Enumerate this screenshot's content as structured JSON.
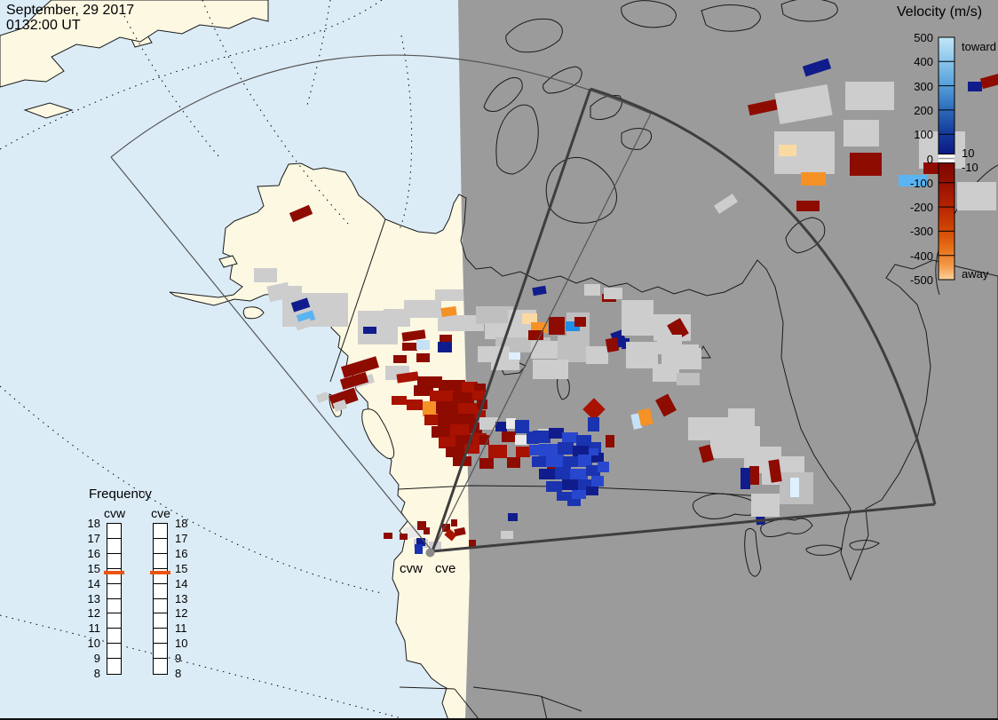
{
  "header": {
    "date": "September, 29 2017",
    "time": "0132:00 UT"
  },
  "colorbar": {
    "title": "Velocity (m/s)",
    "toward_label": "toward",
    "away_label": "away",
    "zero_upper_label": "10",
    "zero_lower_label": "-10",
    "ticks": [
      "500",
      "400",
      "300",
      "200",
      "100",
      "0",
      "-100",
      "-200",
      "-300",
      "-400",
      "-500"
    ],
    "toward_gradient": [
      "#c3e6f8",
      "#8cc6ec",
      "#58a2dc",
      "#306fbd",
      "#173f9f",
      "#0a1a85"
    ],
    "away_gradient": [
      "#7c0600",
      "#961000",
      "#b32000",
      "#cd4303",
      "#e66d15",
      "#f49a48",
      "#fbd19a"
    ]
  },
  "frequency": {
    "title": "Frequency",
    "bars": [
      {
        "label": "cvw"
      },
      {
        "label": "cve"
      }
    ],
    "ticks": [
      "18",
      "17",
      "16",
      "15",
      "14",
      "13",
      "12",
      "11",
      "10",
      "9",
      "8"
    ],
    "marker_color": "#ea5310",
    "marker_tick_index": 3
  },
  "radar_sites": {
    "west_label": "cvw",
    "east_label": "cve"
  },
  "map_colors": {
    "day_ocean": "#dcecf7",
    "day_land": "#fcf8e2",
    "night": "#9b9b9b",
    "coast": "#1a1a1a",
    "fan_thin": "#555555",
    "fan_thick": "#3e3e3e"
  },
  "cells": {
    "palette": {
      "gs": "#cdcdcd",
      "g2": "#bfbfbf",
      "wt": "#e9e9e9",
      "r1": "#8e0b00",
      "r2": "#a81200",
      "or": "#f59125",
      "pe": "#fbd9a2",
      "n1": "#101c8c",
      "b1": "#1a33b0",
      "b2": "#2847cf",
      "b3": "#1f8fe8",
      "sb": "#5ab4f2",
      "pb": "#c4e1f8",
      "vb": "#def0fd"
    },
    "rects": [
      [
        "gs",
        286,
        302,
        26,
        16
      ],
      [
        "gs",
        302,
        320,
        24,
        18,
        -12
      ],
      [
        "gs",
        322,
        322,
        18,
        11
      ],
      [
        "gs",
        318,
        330,
        74,
        38
      ],
      [
        "n1",
        329,
        338,
        19,
        11,
        -18
      ],
      [
        "sb",
        335,
        352,
        19,
        11,
        -18
      ],
      [
        "gs",
        333,
        361,
        18,
        9,
        -18
      ],
      [
        "r1",
        327,
        235,
        24,
        11,
        -23
      ],
      [
        "gs",
        403,
        350,
        45,
        38
      ],
      [
        "n1",
        409,
        368,
        15,
        8
      ],
      [
        "gs",
        432,
        348,
        30,
        20
      ],
      [
        "gs",
        455,
        338,
        42,
        20
      ],
      [
        "gs",
        490,
        326,
        32,
        13
      ],
      [
        "gs",
        493,
        355,
        52,
        18
      ],
      [
        "or",
        497,
        346,
        17,
        10,
        -8
      ],
      [
        "r1",
        453,
        373,
        26,
        10,
        -8
      ],
      [
        "r1",
        453,
        386,
        17,
        9
      ],
      [
        "pb",
        469,
        383,
        15,
        11
      ],
      [
        "r1",
        443,
        400,
        15,
        9
      ],
      [
        "r1",
        469,
        398,
        15,
        10
      ],
      [
        "r1",
        495,
        377,
        14,
        11
      ],
      [
        "n1",
        493,
        385,
        16,
        12
      ],
      [
        "gs",
        434,
        412,
        27,
        16
      ],
      [
        "r1",
        385,
        407,
        41,
        13,
        -17
      ],
      [
        "gs",
        399,
        424,
        22,
        10,
        -17
      ],
      [
        "r1",
        384,
        423,
        30,
        12,
        -17
      ],
      [
        "r1",
        372,
        441,
        30,
        15,
        -19
      ],
      [
        "gs",
        376,
        452,
        14,
        10,
        -19
      ],
      [
        "gs",
        357,
        443,
        13,
        9,
        -19
      ],
      [
        "g2",
        536,
        345,
        42,
        20
      ],
      [
        "gs",
        572,
        349,
        32,
        15
      ],
      [
        "gs",
        546,
        364,
        52,
        18
      ],
      [
        "g2",
        558,
        380,
        62,
        17
      ],
      [
        "gs",
        538,
        390,
        36,
        18
      ],
      [
        "gs",
        598,
        384,
        42,
        20
      ],
      [
        "g2",
        628,
        378,
        32,
        30
      ],
      [
        "gs",
        553,
        404,
        32,
        13
      ],
      [
        "g2",
        638,
        352,
        26,
        40
      ],
      [
        "gs",
        600,
        405,
        40,
        22
      ],
      [
        "gs",
        660,
        390,
        25,
        20
      ],
      [
        "pe",
        588,
        353,
        17,
        12
      ],
      [
        "or",
        598,
        363,
        19,
        12
      ],
      [
        "r1",
        618,
        357,
        18,
        20
      ],
      [
        "b3",
        637,
        362,
        16,
        11
      ],
      [
        "r1",
        647,
        357,
        13,
        11
      ],
      [
        "r1",
        595,
        372,
        17,
        11
      ],
      [
        "vb",
        573,
        397,
        13,
        8
      ],
      [
        "n1",
        690,
        373,
        14,
        18,
        -20
      ],
      [
        "r1",
        683,
        381,
        13,
        15,
        -10
      ],
      [
        "n1",
        700,
        381,
        9,
        12
      ],
      [
        "n1",
        600,
        323,
        15,
        9,
        -10
      ],
      [
        "r1",
        678,
        331,
        16,
        9
      ],
      [
        "gs",
        658,
        320,
        18,
        13
      ],
      [
        "gs",
        680,
        324,
        21,
        13
      ],
      [
        "gs",
        700,
        338,
        36,
        40
      ],
      [
        "gs",
        736,
        354,
        42,
        30
      ],
      [
        "gs",
        705,
        385,
        36,
        30
      ],
      [
        "gs",
        745,
        388,
        42,
        26
      ],
      [
        "r1",
        755,
        361,
        17,
        20,
        -30
      ],
      [
        "gs",
        805,
        224,
        25,
        11,
        -33
      ],
      [
        "n1",
        905,
        70,
        30,
        12,
        -18
      ],
      [
        "r1",
        843,
        115,
        32,
        12,
        -12
      ],
      [
        "gs",
        875,
        100,
        60,
        35,
        -10
      ],
      [
        "gs",
        952,
        92,
        55,
        32
      ],
      [
        "gs",
        872,
        148,
        68,
        48
      ],
      [
        "gs",
        950,
        135,
        40,
        30
      ],
      [
        "gs",
        1035,
        148,
        52,
        42
      ],
      [
        "gs",
        1078,
        205,
        44,
        32
      ],
      [
        "pe",
        877,
        163,
        20,
        13
      ],
      [
        "or",
        902,
        194,
        28,
        15
      ],
      [
        "r1",
        957,
        172,
        36,
        26
      ],
      [
        "sb",
        1012,
        197,
        32,
        13
      ],
      [
        "r1",
        1040,
        183,
        26,
        13
      ],
      [
        "r1",
        897,
        226,
        26,
        12
      ],
      [
        "n1",
        1090,
        92,
        16,
        11
      ],
      [
        "r1",
        1105,
        85,
        26,
        12,
        -15
      ],
      [
        "gs",
        740,
        377,
        28,
        22
      ],
      [
        "gs",
        758,
        392,
        32,
        24
      ],
      [
        "gs",
        735,
        410,
        30,
        20
      ],
      [
        "g2",
        762,
        420,
        26,
        14
      ],
      [
        "r2",
        447,
        420,
        24,
        10,
        -8
      ],
      [
        "r1",
        470,
        424,
        28,
        13
      ],
      [
        "r1",
        494,
        428,
        30,
        14
      ],
      [
        "r2",
        520,
        430,
        18,
        12
      ],
      [
        "r1",
        534,
        432,
        13,
        10
      ],
      [
        "r1",
        466,
        434,
        22,
        12
      ],
      [
        "r2",
        484,
        440,
        28,
        14
      ],
      [
        "r1",
        510,
        442,
        24,
        13
      ],
      [
        "r2",
        532,
        440,
        14,
        11
      ],
      [
        "r2",
        458,
        450,
        18,
        12
      ],
      [
        "or",
        476,
        452,
        17,
        17
      ],
      [
        "r1",
        491,
        452,
        27,
        14
      ],
      [
        "r2",
        516,
        454,
        24,
        13
      ],
      [
        "r1",
        537,
        450,
        12,
        11
      ],
      [
        "r2",
        478,
        467,
        16,
        12
      ],
      [
        "r1",
        493,
        466,
        25,
        14
      ],
      [
        "r1",
        516,
        466,
        21,
        13
      ],
      [
        "r2",
        535,
        462,
        12,
        10
      ],
      [
        "r1",
        486,
        480,
        23,
        13
      ],
      [
        "r2",
        507,
        478,
        23,
        14
      ],
      [
        "r1",
        528,
        476,
        15,
        12
      ],
      [
        "r2",
        494,
        492,
        21,
        13
      ],
      [
        "r1",
        513,
        490,
        21,
        13
      ],
      [
        "r2",
        532,
        488,
        16,
        12
      ],
      [
        "r1",
        502,
        503,
        23,
        12
      ],
      [
        "r2",
        523,
        500,
        17,
        11
      ],
      [
        "r1",
        510,
        514,
        21,
        11
      ],
      [
        "r2",
        441,
        446,
        17,
        10
      ],
      [
        "gs",
        540,
        470,
        21,
        14
      ],
      [
        "n1",
        558,
        475,
        13,
        11
      ],
      [
        "wt",
        570,
        471,
        11,
        12
      ],
      [
        "b1",
        580,
        473,
        16,
        15
      ],
      [
        "r1",
        565,
        486,
        16,
        12
      ],
      [
        "wt",
        580,
        490,
        14,
        11
      ],
      [
        "b1",
        593,
        486,
        14,
        14
      ],
      [
        "gs",
        606,
        483,
        18,
        11
      ],
      [
        "r1",
        540,
        490,
        11,
        11
      ],
      [
        "r2",
        550,
        501,
        21,
        15
      ],
      [
        "r1",
        540,
        516,
        16,
        12
      ],
      [
        "r2",
        581,
        503,
        16,
        12
      ],
      [
        "b2",
        596,
        501,
        16,
        12
      ],
      [
        "r1",
        571,
        515,
        15,
        12
      ],
      [
        "b1",
        611,
        511,
        15,
        12
      ],
      [
        "r1",
        616,
        521,
        15,
        12
      ],
      [
        "b1",
        600,
        485,
        20,
        14
      ],
      [
        "n1",
        618,
        482,
        17,
        12
      ],
      [
        "b2",
        633,
        487,
        18,
        12
      ],
      [
        "b1",
        649,
        490,
        17,
        14
      ],
      [
        "b2",
        607,
        500,
        22,
        14
      ],
      [
        "b1",
        628,
        498,
        18,
        14
      ],
      [
        "n1",
        645,
        502,
        20,
        12
      ],
      [
        "b1",
        663,
        498,
        14,
        12
      ],
      [
        "b1",
        599,
        514,
        18,
        12
      ],
      [
        "b2",
        615,
        512,
        20,
        14
      ],
      [
        "b1",
        634,
        514,
        18,
        12
      ],
      [
        "b2",
        651,
        512,
        16,
        14
      ],
      [
        "n1",
        666,
        510,
        14,
        11
      ],
      [
        "n1",
        607,
        528,
        20,
        12
      ],
      [
        "b1",
        625,
        526,
        18,
        14
      ],
      [
        "b2",
        642,
        528,
        20,
        12
      ],
      [
        "b1",
        660,
        524,
        16,
        12
      ],
      [
        "b2",
        673,
        520,
        13,
        12
      ],
      [
        "b1",
        615,
        542,
        18,
        12
      ],
      [
        "n1",
        633,
        540,
        20,
        12
      ],
      [
        "b1",
        651,
        540,
        16,
        12
      ],
      [
        "b2",
        666,
        536,
        14,
        12
      ],
      [
        "b1",
        627,
        554,
        18,
        10
      ],
      [
        "b2",
        644,
        552,
        16,
        10
      ],
      [
        "n1",
        660,
        548,
        14,
        10
      ],
      [
        "b1",
        639,
        562,
        15,
        8
      ],
      [
        "r2",
        660,
        452,
        18,
        18,
        45
      ],
      [
        "b1",
        662,
        470,
        13,
        16
      ],
      [
        "r1",
        682,
        490,
        10,
        14
      ],
      [
        "b2",
        663,
        505,
        11,
        8
      ],
      [
        "n1",
        572,
        578,
        11,
        9
      ],
      [
        "gs",
        564,
        598,
        14,
        9
      ],
      [
        "pb",
        712,
        466,
        10,
        17,
        -12
      ],
      [
        "or",
        720,
        461,
        14,
        18,
        -12
      ],
      [
        "r1",
        742,
        446,
        16,
        21,
        -28
      ],
      [
        "gs",
        820,
        460,
        30,
        20
      ],
      [
        "gs",
        775,
        470,
        48,
        26
      ],
      [
        "gs",
        800,
        480,
        56,
        36
      ],
      [
        "gs",
        838,
        503,
        42,
        30
      ],
      [
        "gs",
        858,
        514,
        48,
        32
      ],
      [
        "g2",
        878,
        532,
        38,
        36
      ],
      [
        "r1",
        789,
        502,
        13,
        18,
        -15
      ],
      [
        "r1",
        844,
        525,
        11,
        21
      ],
      [
        "r1",
        867,
        518,
        12,
        25,
        -8
      ],
      [
        "n1",
        834,
        527,
        11,
        24
      ],
      [
        "n1",
        851,
        567,
        10,
        24,
        -5
      ],
      [
        "vb",
        890,
        538,
        10,
        22
      ],
      [
        "gs",
        846,
        556,
        32,
        26
      ],
      [
        "wt",
        455,
        592,
        22,
        13,
        -18
      ],
      [
        "gs",
        466,
        607,
        16,
        10
      ],
      [
        "n1",
        469,
        606,
        10,
        9
      ],
      [
        "b1",
        467,
        613,
        9,
        11
      ],
      [
        "r1",
        470,
        587,
        10,
        10
      ],
      [
        "r1",
        477,
        594,
        7,
        8
      ],
      [
        "r1",
        498,
        590,
        9,
        9
      ],
      [
        "r2",
        502,
        598,
        11,
        9,
        40
      ],
      [
        "r1",
        512,
        595,
        12,
        8,
        -12
      ],
      [
        "r1",
        528,
        608,
        8,
        8
      ],
      [
        "r1",
        508,
        585,
        7,
        8
      ],
      [
        "gs",
        483,
        610,
        14,
        9
      ],
      [
        "r1",
        432,
        600,
        10,
        7
      ],
      [
        "r1",
        450,
        601,
        9,
        7
      ]
    ]
  }
}
